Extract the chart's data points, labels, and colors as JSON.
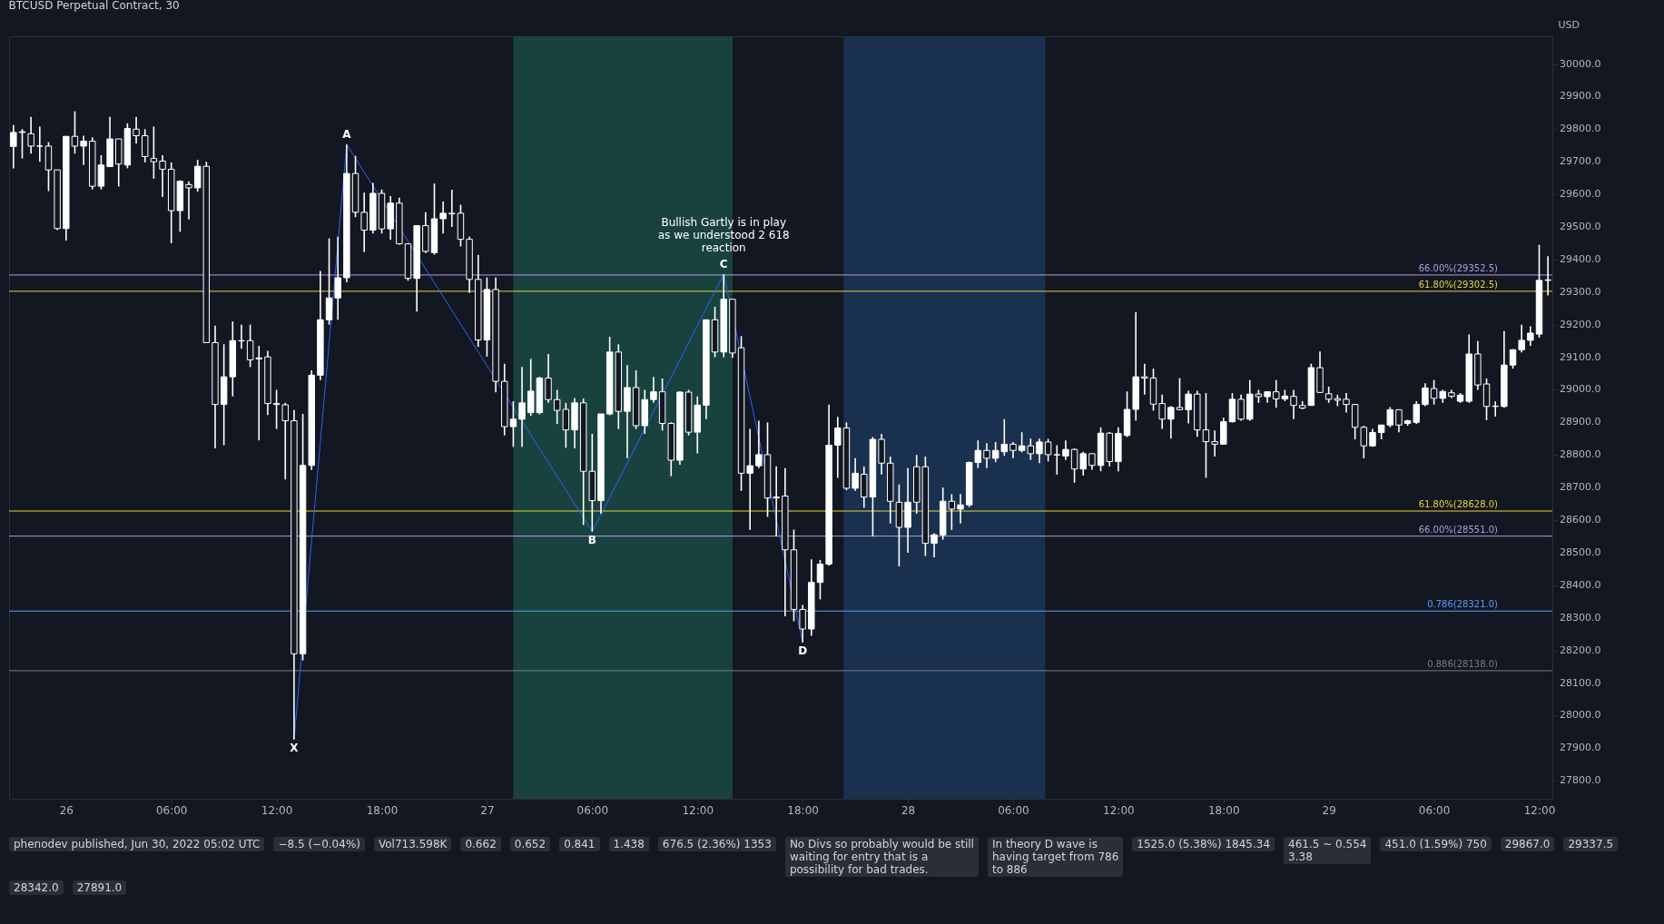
{
  "chart_data": {
    "type": "candlestick",
    "title": "BTCUSD Perpetual Contract, 30",
    "ylabel": "USD",
    "x": [
      "2022-06-25T21:00",
      "2022-06-25T21:30",
      "2022-06-25T22:00",
      "2022-06-25T22:30",
      "2022-06-25T23:00",
      "2022-06-25T23:30",
      "2022-06-26T00:00",
      "2022-06-26T00:30",
      "2022-06-26T01:00",
      "2022-06-26T01:30",
      "2022-06-26T02:00",
      "2022-06-26T02:30",
      "2022-06-26T03:00",
      "2022-06-26T03:30",
      "2022-06-26T04:00",
      "2022-06-26T04:30",
      "2022-06-26T05:00",
      "2022-06-26T05:30",
      "2022-06-26T06:00",
      "2022-06-26T06:30",
      "2022-06-26T07:00",
      "2022-06-26T07:30",
      "2022-06-26T08:00",
      "2022-06-26T08:30",
      "2022-06-26T09:00",
      "2022-06-26T09:30",
      "2022-06-26T10:00",
      "2022-06-26T10:30",
      "2022-06-26T11:00",
      "2022-06-26T11:30",
      "2022-06-26T12:00",
      "2022-06-26T12:30",
      "2022-06-26T13:00",
      "2022-06-26T13:30",
      "2022-06-26T14:00",
      "2022-06-26T14:30",
      "2022-06-26T15:00",
      "2022-06-26T15:30",
      "2022-06-26T16:00",
      "2022-06-26T16:30",
      "2022-06-26T17:00",
      "2022-06-26T17:30",
      "2022-06-26T18:00",
      "2022-06-26T18:30",
      "2022-06-26T19:00",
      "2022-06-26T19:30",
      "2022-06-26T20:00",
      "2022-06-26T20:30",
      "2022-06-26T21:00",
      "2022-06-26T21:30",
      "2022-06-26T22:00",
      "2022-06-26T22:30",
      "2022-06-26T23:00",
      "2022-06-26T23:30",
      "2022-06-27T00:00",
      "2022-06-27T00:30",
      "2022-06-27T01:00",
      "2022-06-27T01:30",
      "2022-06-27T02:00",
      "2022-06-27T02:30",
      "2022-06-27T03:00",
      "2022-06-27T03:30",
      "2022-06-27T04:00",
      "2022-06-27T04:30",
      "2022-06-27T05:00",
      "2022-06-27T05:30",
      "2022-06-27T06:00",
      "2022-06-27T06:30",
      "2022-06-27T07:00",
      "2022-06-27T07:30",
      "2022-06-27T08:00",
      "2022-06-27T08:30",
      "2022-06-27T09:00",
      "2022-06-27T09:30",
      "2022-06-27T10:00",
      "2022-06-27T10:30",
      "2022-06-27T11:00",
      "2022-06-27T11:30",
      "2022-06-27T12:00",
      "2022-06-27T12:30",
      "2022-06-27T13:00",
      "2022-06-27T13:30",
      "2022-06-27T14:00",
      "2022-06-27T14:30",
      "2022-06-27T15:00",
      "2022-06-27T15:30",
      "2022-06-27T16:00",
      "2022-06-27T16:30",
      "2022-06-27T17:00",
      "2022-06-27T17:30",
      "2022-06-27T18:00",
      "2022-06-27T18:30",
      "2022-06-27T19:00",
      "2022-06-27T19:30",
      "2022-06-27T20:00",
      "2022-06-27T20:30",
      "2022-06-27T21:00",
      "2022-06-27T21:30",
      "2022-06-27T22:00",
      "2022-06-27T22:30",
      "2022-06-27T23:00",
      "2022-06-27T23:30",
      "2022-06-28T00:00",
      "2022-06-28T00:30",
      "2022-06-28T01:00",
      "2022-06-28T01:30",
      "2022-06-28T02:00",
      "2022-06-28T02:30",
      "2022-06-28T03:00",
      "2022-06-28T03:30",
      "2022-06-28T04:00",
      "2022-06-28T04:30",
      "2022-06-28T05:00",
      "2022-06-28T05:30",
      "2022-06-28T06:00",
      "2022-06-28T06:30",
      "2022-06-28T07:00",
      "2022-06-28T07:30",
      "2022-06-28T08:00",
      "2022-06-28T08:30",
      "2022-06-28T09:00",
      "2022-06-28T09:30",
      "2022-06-28T10:00",
      "2022-06-28T10:30",
      "2022-06-28T11:00",
      "2022-06-28T11:30",
      "2022-06-28T12:00",
      "2022-06-28T12:30",
      "2022-06-28T13:00",
      "2022-06-28T13:30",
      "2022-06-28T14:00",
      "2022-06-28T14:30",
      "2022-06-28T15:00",
      "2022-06-28T15:30",
      "2022-06-28T16:00",
      "2022-06-28T16:30",
      "2022-06-28T17:00",
      "2022-06-28T17:30",
      "2022-06-28T18:00",
      "2022-06-28T18:30",
      "2022-06-28T19:00",
      "2022-06-28T19:30",
      "2022-06-28T20:00",
      "2022-06-28T20:30",
      "2022-06-28T21:00",
      "2022-06-28T21:30",
      "2022-06-28T22:00",
      "2022-06-28T22:30",
      "2022-06-28T23:00",
      "2022-06-28T23:30",
      "2022-06-29T00:00",
      "2022-06-29T00:30",
      "2022-06-29T01:00",
      "2022-06-29T01:30",
      "2022-06-29T02:00",
      "2022-06-29T02:30",
      "2022-06-29T03:00",
      "2022-06-29T03:30",
      "2022-06-29T04:00",
      "2022-06-29T04:30",
      "2022-06-29T05:00",
      "2022-06-29T05:30",
      "2022-06-29T06:00",
      "2022-06-29T06:30",
      "2022-06-29T07:00",
      "2022-06-29T07:30",
      "2022-06-29T08:00",
      "2022-06-29T08:30",
      "2022-06-29T09:00",
      "2022-06-29T09:30",
      "2022-06-29T10:00",
      "2022-06-29T10:30",
      "2022-06-29T11:00",
      "2022-06-29T11:30",
      "2022-06-29T12:00",
      "2022-06-29T12:30"
    ],
    "ohlc": [
      [
        29747,
        29813,
        29680,
        29790
      ],
      [
        29790,
        29800,
        29710,
        29792
      ],
      [
        29786,
        29838,
        29725,
        29748
      ],
      [
        29748,
        29808,
        29700,
        29748
      ],
      [
        29748,
        29760,
        29610,
        29675
      ],
      [
        29675,
        29675,
        29490,
        29495
      ],
      [
        29495,
        29778,
        29458,
        29778
      ],
      [
        29778,
        29855,
        29725,
        29748
      ],
      [
        29748,
        29780,
        29690,
        29763
      ],
      [
        29763,
        29775,
        29615,
        29625
      ],
      [
        29625,
        29720,
        29615,
        29690
      ],
      [
        29685,
        29838,
        29685,
        29770
      ],
      [
        29770,
        29770,
        29624,
        29693
      ],
      [
        29690,
        29818,
        29680,
        29802
      ],
      [
        29800,
        29838,
        29756,
        29780
      ],
      [
        29780,
        29800,
        29698,
        29716
      ],
      [
        29710,
        29808,
        29648,
        29700
      ],
      [
        29702,
        29720,
        29592,
        29677
      ],
      [
        29677,
        29698,
        29450,
        29550
      ],
      [
        29550,
        29643,
        29485,
        29640
      ],
      [
        29630,
        29640,
        29523,
        29620
      ],
      [
        29620,
        29706,
        29608,
        29686
      ],
      [
        29686,
        29700,
        29145,
        29145
      ],
      [
        29145,
        29197,
        28820,
        28955
      ],
      [
        28955,
        29140,
        28830,
        29040
      ],
      [
        29040,
        29210,
        28980,
        29151
      ],
      [
        29151,
        29200,
        29126,
        29150
      ],
      [
        29151,
        29200,
        29070,
        29092
      ],
      [
        29095,
        29135,
        28845,
        29098
      ],
      [
        29101,
        29120,
        28923,
        28958
      ],
      [
        28958,
        29000,
        28880,
        28955
      ],
      [
        28954,
        28960,
        28725,
        28905
      ],
      [
        28905,
        28938,
        27927,
        28190
      ],
      [
        28190,
        28926,
        28170,
        28768
      ],
      [
        28768,
        29060,
        28754,
        29045
      ],
      [
        29045,
        29365,
        29030,
        29215
      ],
      [
        29215,
        29465,
        29200,
        29282
      ],
      [
        29282,
        29470,
        29215,
        29344
      ],
      [
        29344,
        29753,
        29330,
        29664
      ],
      [
        29664,
        29718,
        29530,
        29545
      ],
      [
        29545,
        29605,
        29423,
        29490
      ],
      [
        29490,
        29635,
        29480,
        29603
      ],
      [
        29603,
        29615,
        29480,
        29494
      ],
      [
        29494,
        29595,
        29460,
        29573
      ],
      [
        29573,
        29590,
        29446,
        29448
      ],
      [
        29448,
        29450,
        29335,
        29342
      ],
      [
        29342,
        29504,
        29240,
        29504
      ],
      [
        29504,
        29545,
        29420,
        29425
      ],
      [
        29421,
        29633,
        29415,
        29525
      ],
      [
        29525,
        29578,
        29480,
        29542
      ],
      [
        29542,
        29614,
        29500,
        29540
      ],
      [
        29542,
        29568,
        29440,
        29462
      ],
      [
        29462,
        29470,
        29297,
        29339
      ],
      [
        29339,
        29414,
        29132,
        29153
      ],
      [
        29153,
        29345,
        29102,
        29308
      ],
      [
        29308,
        29345,
        28992,
        29026
      ],
      [
        29026,
        29080,
        28860,
        28887
      ],
      [
        28887,
        28965,
        28825,
        28910
      ],
      [
        28910,
        29070,
        28825,
        28960
      ],
      [
        28930,
        29095,
        28920,
        28996
      ],
      [
        28930,
        29040,
        28925,
        29036
      ],
      [
        29036,
        29110,
        28960,
        28970
      ],
      [
        28970,
        29000,
        28895,
        28937
      ],
      [
        28940,
        28960,
        28822,
        28877
      ],
      [
        28877,
        28975,
        28820,
        28960
      ],
      [
        28960,
        28973,
        28585,
        28750
      ],
      [
        28750,
        28865,
        28565,
        28660
      ],
      [
        28660,
        28926,
        28620,
        28926
      ],
      [
        28926,
        29163,
        28922,
        29116
      ],
      [
        29116,
        29140,
        28880,
        28934
      ],
      [
        28934,
        29076,
        28790,
        29007
      ],
      [
        29007,
        29060,
        28880,
        28890
      ],
      [
        28890,
        29000,
        28865,
        28970
      ],
      [
        28970,
        29040,
        28960,
        28994
      ],
      [
        28994,
        29035,
        28875,
        28897
      ],
      [
        28897,
        28900,
        28735,
        28784
      ],
      [
        28784,
        28995,
        28770,
        28993
      ],
      [
        28993,
        29000,
        28860,
        28870
      ],
      [
        28870,
        28980,
        28805,
        28953
      ],
      [
        28953,
        29215,
        28910,
        29215
      ],
      [
        29215,
        29255,
        29100,
        29116
      ],
      [
        29116,
        29355,
        29100,
        29278
      ],
      [
        29278,
        29278,
        29098,
        29113
      ],
      [
        29129,
        29165,
        28690,
        28744
      ],
      [
        28744,
        28880,
        28570,
        28767
      ],
      [
        28767,
        28905,
        28760,
        28801
      ],
      [
        28801,
        28900,
        28610,
        28668
      ],
      [
        28668,
        28765,
        28550,
        28671
      ],
      [
        28674,
        28760,
        28305,
        28509
      ],
      [
        28509,
        28571,
        28290,
        28326
      ],
      [
        28326,
        28340,
        28225,
        28266
      ],
      [
        28266,
        28480,
        28245,
        28409
      ],
      [
        28409,
        28478,
        28357,
        28465
      ],
      [
        28465,
        28955,
        28460,
        28830
      ],
      [
        28830,
        28917,
        28730,
        28883
      ],
      [
        28883,
        28900,
        28692,
        28698
      ],
      [
        28698,
        28790,
        28690,
        28744
      ],
      [
        28741,
        28765,
        28638,
        28671
      ],
      [
        28671,
        28855,
        28550,
        28848
      ],
      [
        28848,
        28865,
        28740,
        28775
      ],
      [
        28775,
        28795,
        28590,
        28658
      ],
      [
        28655,
        28710,
        28458,
        28578
      ],
      [
        28578,
        28760,
        28500,
        28655
      ],
      [
        28764,
        28800,
        28620,
        28655
      ],
      [
        28764,
        28795,
        28490,
        28529
      ],
      [
        28529,
        28560,
        28486,
        28555
      ],
      [
        28555,
        28700,
        28540,
        28658
      ],
      [
        28658,
        28680,
        28570,
        28634
      ],
      [
        28634,
        28680,
        28590,
        28647
      ],
      [
        28647,
        28780,
        28640,
        28777
      ],
      [
        28777,
        28845,
        28760,
        28814
      ],
      [
        28814,
        28836,
        28760,
        28790
      ],
      [
        28790,
        28840,
        28778,
        28814
      ],
      [
        28810,
        28910,
        28798,
        28833
      ],
      [
        28833,
        28840,
        28790,
        28814
      ],
      [
        28814,
        28870,
        28808,
        28828
      ],
      [
        28828,
        28850,
        28785,
        28804
      ],
      [
        28804,
        28850,
        28775,
        28840
      ],
      [
        28840,
        28850,
        28780,
        28801
      ],
      [
        28801,
        28830,
        28740,
        28800
      ],
      [
        28797,
        28845,
        28785,
        28817
      ],
      [
        28817,
        28820,
        28715,
        28757
      ],
      [
        28757,
        28810,
        28737,
        28804
      ],
      [
        28804,
        28805,
        28755,
        28768
      ],
      [
        28768,
        28885,
        28750,
        28867
      ],
      [
        28867,
        28870,
        28765,
        28780
      ],
      [
        28780,
        28885,
        28750,
        28866
      ],
      [
        28860,
        28995,
        28855,
        28940
      ],
      [
        28940,
        29238,
        28905,
        29040
      ],
      [
        29040,
        29080,
        28985,
        29036
      ],
      [
        29036,
        29065,
        28936,
        28956
      ],
      [
        28958,
        28985,
        28880,
        28910
      ],
      [
        28910,
        28950,
        28850,
        28946
      ],
      [
        28946,
        29036,
        28938,
        28939
      ],
      [
        28939,
        28997,
        28897,
        28987
      ],
      [
        28987,
        28997,
        28856,
        28877
      ],
      [
        28877,
        28990,
        28730,
        28841
      ],
      [
        28841,
        28875,
        28795,
        28833
      ],
      [
        28833,
        28915,
        28833,
        28902
      ],
      [
        28902,
        28990,
        28900,
        28971
      ],
      [
        28971,
        28985,
        28905,
        28910
      ],
      [
        28910,
        29030,
        28905,
        28987
      ],
      [
        28987,
        29000,
        28960,
        28979
      ],
      [
        28979,
        28995,
        28960,
        28994
      ],
      [
        28994,
        29030,
        28945,
        28972
      ],
      [
        28972,
        29000,
        28965,
        28981
      ],
      [
        28980,
        29000,
        28910,
        28952
      ],
      [
        28952,
        28965,
        28940,
        28944
      ],
      [
        28952,
        29080,
        28952,
        29068
      ],
      [
        29068,
        29118,
        28990,
        28992
      ],
      [
        28988,
        29010,
        28960,
        28971
      ],
      [
        28973,
        28985,
        28950,
        28968
      ],
      [
        28971,
        28990,
        28930,
        28955
      ],
      [
        28955,
        28957,
        28848,
        28885
      ],
      [
        28885,
        28890,
        28790,
        28828
      ],
      [
        28828,
        28880,
        28825,
        28869
      ],
      [
        28869,
        28893,
        28848,
        28892
      ],
      [
        28892,
        28947,
        28885,
        28939
      ],
      [
        28939,
        28940,
        28870,
        28892
      ],
      [
        28897,
        28908,
        28890,
        28905
      ],
      [
        28900,
        28965,
        28895,
        28955
      ],
      [
        28955,
        29020,
        28950,
        29006
      ],
      [
        29004,
        29030,
        28955,
        28974
      ],
      [
        28974,
        29000,
        28960,
        28995
      ],
      [
        28991,
        29000,
        28975,
        28980
      ],
      [
        28965,
        28990,
        28960,
        28984
      ],
      [
        28965,
        29170,
        28960,
        29110
      ],
      [
        29110,
        29150,
        29000,
        29015
      ],
      [
        29018,
        29035,
        28907,
        28949
      ],
      [
        28949,
        28965,
        28918,
        28950
      ],
      [
        28949,
        29180,
        28945,
        29076
      ],
      [
        29076,
        29125,
        29065,
        29123
      ],
      [
        29123,
        29200,
        29115,
        29152
      ],
      [
        29152,
        29195,
        29135,
        29174
      ],
      [
        29171,
        29445,
        29160,
        29336
      ],
      [
        29336,
        29410,
        29290,
        29337.5
      ]
    ],
    "series": [
      {
        "type": "line",
        "color": "#2962ff",
        "x": [
          "2022-06-26T13:00",
          "2022-06-26T16:00",
          "2022-06-27T06:00",
          "2022-06-27T13:30",
          "2022-06-27T18:00"
        ],
        "values": [
          27927,
          29753,
          28565,
          29355,
          28225
        ]
      }
    ],
    "ref_lines": [
      {
        "axis": "y",
        "value": 29352.5,
        "label": "66.00%(29352.5)",
        "color": "#b39ddb"
      },
      {
        "axis": "y",
        "value": 29302.5,
        "label": "61.80%(29302.5)",
        "color": "#e6d33a"
      },
      {
        "axis": "y",
        "value": 28628,
        "label": "61.80%(28628.0)",
        "color": "#e6d33a"
      },
      {
        "axis": "y",
        "value": 28551,
        "label": "66.00%(28551.0)",
        "color": "#b39ddb"
      },
      {
        "axis": "y",
        "value": 28321,
        "label": "0.786(28321.0)",
        "color": "#5b9cf6"
      },
      {
        "axis": "y",
        "value": 28138,
        "label": "0.886(28138.0)",
        "color": "#787b86"
      }
    ],
    "bands": [
      {
        "axis": "x",
        "from": "2022-06-27T01:30",
        "to": "2022-06-27T14:00",
        "color": "#1b4a44"
      },
      {
        "axis": "x",
        "from": "2022-06-27T20:20",
        "to": "2022-06-28T07:50",
        "color": "#1b3556"
      }
    ],
    "annotations": [
      "phenodev published, Jun 30, 2022 05:02 UTC",
      "−8.5 (−0.04%)",
      "Vol713.598K",
      {
        "text": "X",
        "x": "2022-06-26T13:00",
        "y": 27927
      },
      {
        "text": "A",
        "x": "2022-06-26T16:00",
        "y": 29753
      },
      {
        "text": "B",
        "x": "2022-06-27T06:00",
        "y": 28565
      },
      {
        "text": "C",
        "x": "2022-06-27T13:30",
        "y": 29355
      },
      {
        "text": "D",
        "x": "2022-06-27T18:00",
        "y": 28225
      },
      "0.662",
      "0.652",
      "0.841",
      "1.438",
      "676.5 (2.36%) 1353",
      {
        "text": "Bullish Gartly is in play\nas we understood 2 618\nreaction",
        "x": "2022-06-27T13:30",
        "y": 29355
      },
      "No Divs so probably would be still\nwaiting for entry that is a\npossibility for bad trades.",
      "In theory D wave is\nhaving target from 786\nto 886",
      "1525.0 (5.38%) 1845.34",
      "461.5 ~ 0.554\n3.38",
      "451.0 (1.59%) 750",
      "29867.0",
      "29337.5",
      "28342.0",
      "27891.0"
    ],
    "xlim": [
      "2022-06-25T20:45",
      "2022-06-29T12:45"
    ],
    "xticks": [
      {
        "value": "2022-06-26T00:00",
        "label": "26"
      },
      {
        "value": "2022-06-26T06:00",
        "label": "06:00"
      },
      {
        "value": "2022-06-26T12:00",
        "label": "12:00"
      },
      {
        "value": "2022-06-26T18:00",
        "label": "18:00"
      },
      {
        "value": "2022-06-27T00:00",
        "label": "27"
      },
      {
        "value": "2022-06-27T06:00",
        "label": "06:00"
      },
      {
        "value": "2022-06-27T12:00",
        "label": "12:00"
      },
      {
        "value": "2022-06-27T18:00",
        "label": "18:00"
      },
      {
        "value": "2022-06-28T00:00",
        "label": "28"
      },
      {
        "value": "2022-06-28T06:00",
        "label": "06:00"
      },
      {
        "value": "2022-06-28T12:00",
        "label": "12:00"
      },
      {
        "value": "2022-06-28T18:00",
        "label": "18:00"
      },
      {
        "value": "2022-06-29T00:00",
        "label": "29"
      },
      {
        "value": "2022-06-29T06:00",
        "label": "06:00"
      },
      {
        "value": "2022-06-29T12:00",
        "label": "12:00"
      }
    ],
    "ylim": [
      27745,
      30085
    ],
    "yticks": [
      {
        "value": 27800,
        "label": "27800.0"
      },
      {
        "value": 27900,
        "label": "27900.0"
      },
      {
        "value": 28000,
        "label": "28000.0"
      },
      {
        "value": 28100,
        "label": "28100.0"
      },
      {
        "value": 28200,
        "label": "28200.0"
      },
      {
        "value": 28300,
        "label": "28300.0"
      },
      {
        "value": 28400,
        "label": "28400.0"
      },
      {
        "value": 28500,
        "label": "28500.0"
      },
      {
        "value": 28600,
        "label": "28600.0"
      },
      {
        "value": 28700,
        "label": "28700.0"
      },
      {
        "value": 28800,
        "label": "28800.0"
      },
      {
        "value": 28900,
        "label": "28900.0"
      },
      {
        "value": 29000,
        "label": "29000.0"
      },
      {
        "value": 29100,
        "label": "29100.0"
      },
      {
        "value": 29200,
        "label": "29200.0"
      },
      {
        "value": 29300,
        "label": "29300.0"
      },
      {
        "value": 29400,
        "label": "29400.0"
      },
      {
        "value": 29500,
        "label": "29500.0"
      },
      {
        "value": 29600,
        "label": "29600.0"
      },
      {
        "value": 29700,
        "label": "29700.0"
      },
      {
        "value": 29800,
        "label": "29800.0"
      },
      {
        "value": 29900,
        "label": "29900.0"
      },
      {
        "value": 30000,
        "label": "30000.0"
      }
    ],
    "grid": false
  }
}
